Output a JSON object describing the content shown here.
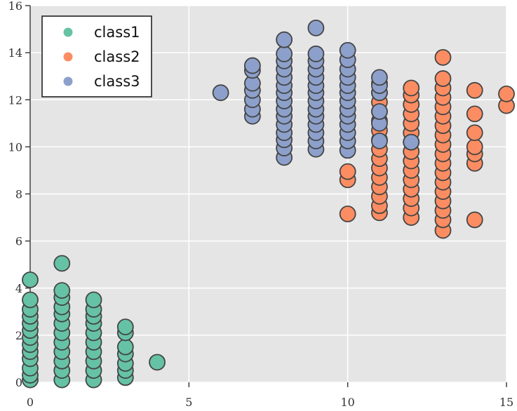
{
  "chart_data": {
    "type": "scatter",
    "title": "",
    "xlabel": "",
    "ylabel": "",
    "xlim": [
      0,
      15
    ],
    "ylim": [
      0,
      16
    ],
    "x_ticks": [
      0,
      5,
      10,
      15
    ],
    "y_ticks": [
      0,
      2,
      4,
      6,
      8,
      10,
      12,
      14,
      16
    ],
    "grid": true,
    "background": "#e5e5e5",
    "grid_color": "#ffffff",
    "marker_edge_color": "#444444",
    "legend": {
      "placement": "top-left"
    },
    "series": [
      {
        "name": "class1",
        "color": "#66c2a5",
        "points": [
          [
            0,
            0.1
          ],
          [
            0,
            0.3
          ],
          [
            0,
            0.6
          ],
          [
            0,
            1.0
          ],
          [
            0,
            1.3
          ],
          [
            0,
            1.6
          ],
          [
            0,
            1.9
          ],
          [
            0,
            2.2
          ],
          [
            0,
            2.5
          ],
          [
            0,
            2.8
          ],
          [
            0,
            3.1
          ],
          [
            0,
            3.5
          ],
          [
            0,
            4.35
          ],
          [
            1,
            0.1
          ],
          [
            1,
            0.5
          ],
          [
            1,
            0.9
          ],
          [
            1,
            1.3
          ],
          [
            1,
            1.7
          ],
          [
            1,
            2.1
          ],
          [
            1,
            2.5
          ],
          [
            1,
            2.9
          ],
          [
            1,
            3.2
          ],
          [
            1,
            3.6
          ],
          [
            1,
            3.9
          ],
          [
            1,
            5.05
          ],
          [
            2,
            0.1
          ],
          [
            2,
            0.5
          ],
          [
            2,
            0.9
          ],
          [
            2,
            1.3
          ],
          [
            2,
            1.7
          ],
          [
            2,
            2.1
          ],
          [
            2,
            2.5
          ],
          [
            2,
            2.8
          ],
          [
            2,
            3.1
          ],
          [
            2,
            3.5
          ],
          [
            3,
            0.2
          ],
          [
            3,
            0.5
          ],
          [
            3,
            0.8
          ],
          [
            3,
            1.2
          ],
          [
            3,
            1.5
          ],
          [
            3,
            2.1
          ],
          [
            3,
            2.35
          ],
          [
            4,
            0.85
          ]
        ]
      },
      {
        "name": "class2",
        "color": "#fc8d62",
        "points": [
          [
            10,
            7.15
          ],
          [
            10,
            8.6
          ],
          [
            10,
            8.95
          ],
          [
            11,
            7.2
          ],
          [
            11,
            7.5
          ],
          [
            11,
            7.9
          ],
          [
            11,
            8.3
          ],
          [
            11,
            8.7
          ],
          [
            11,
            9.1
          ],
          [
            11,
            9.5
          ],
          [
            11,
            9.9
          ],
          [
            11,
            10.3
          ],
          [
            11,
            10.7
          ],
          [
            11,
            11.1
          ],
          [
            11,
            11.5
          ],
          [
            11,
            11.9
          ],
          [
            11,
            12.3
          ],
          [
            11,
            12.7
          ],
          [
            12,
            7.0
          ],
          [
            12,
            7.4
          ],
          [
            12,
            7.8
          ],
          [
            12,
            8.2
          ],
          [
            12,
            8.6
          ],
          [
            12,
            9.0
          ],
          [
            12,
            9.4
          ],
          [
            12,
            9.8
          ],
          [
            12,
            10.2
          ],
          [
            12,
            10.6
          ],
          [
            12,
            11.0
          ],
          [
            12,
            11.4
          ],
          [
            12,
            11.8
          ],
          [
            12,
            12.2
          ],
          [
            12,
            12.5
          ],
          [
            13,
            6.45
          ],
          [
            13,
            6.9
          ],
          [
            13,
            7.3
          ],
          [
            13,
            7.7
          ],
          [
            13,
            8.1
          ],
          [
            13,
            8.5
          ],
          [
            13,
            8.9
          ],
          [
            13,
            9.3
          ],
          [
            13,
            9.7
          ],
          [
            13,
            10.1
          ],
          [
            13,
            10.5
          ],
          [
            13,
            10.9
          ],
          [
            13,
            11.3
          ],
          [
            13,
            11.7
          ],
          [
            13,
            12.1
          ],
          [
            13,
            12.5
          ],
          [
            13,
            12.9
          ],
          [
            13,
            13.8
          ],
          [
            14,
            6.9
          ],
          [
            14,
            9.3
          ],
          [
            14,
            9.7
          ],
          [
            14,
            10.0
          ],
          [
            14,
            10.6
          ],
          [
            14,
            11.4
          ],
          [
            14,
            12.4
          ],
          [
            15,
            11.75
          ],
          [
            15,
            12.25
          ]
        ]
      },
      {
        "name": "class3",
        "color": "#8da0cb",
        "points": [
          [
            6,
            12.3
          ],
          [
            7,
            11.3
          ],
          [
            7,
            11.6
          ],
          [
            7,
            12.0
          ],
          [
            7,
            12.4
          ],
          [
            7,
            12.7
          ],
          [
            7,
            13.25
          ],
          [
            7,
            13.45
          ],
          [
            8,
            9.55
          ],
          [
            8,
            9.95
          ],
          [
            8,
            10.3
          ],
          [
            8,
            10.6
          ],
          [
            8,
            10.95
          ],
          [
            8,
            11.3
          ],
          [
            8,
            11.6
          ],
          [
            8,
            11.95
          ],
          [
            8,
            12.3
          ],
          [
            8,
            12.6
          ],
          [
            8,
            12.95
          ],
          [
            8,
            13.3
          ],
          [
            8,
            13.65
          ],
          [
            8,
            13.95
          ],
          [
            8,
            14.55
          ],
          [
            9,
            9.9
          ],
          [
            9,
            10.25
          ],
          [
            9,
            10.6
          ],
          [
            9,
            10.95
          ],
          [
            9,
            11.3
          ],
          [
            9,
            11.6
          ],
          [
            9,
            11.95
          ],
          [
            9,
            12.3
          ],
          [
            9,
            12.6
          ],
          [
            9,
            12.95
          ],
          [
            9,
            13.3
          ],
          [
            9,
            13.65
          ],
          [
            9,
            13.95
          ],
          [
            9,
            15.05
          ],
          [
            10,
            9.85
          ],
          [
            10,
            10.25
          ],
          [
            10,
            10.6
          ],
          [
            10,
            10.95
          ],
          [
            10,
            11.3
          ],
          [
            10,
            11.6
          ],
          [
            10,
            11.95
          ],
          [
            10,
            12.3
          ],
          [
            10,
            12.6
          ],
          [
            10,
            12.95
          ],
          [
            10,
            13.3
          ],
          [
            10,
            13.7
          ],
          [
            10,
            14.1
          ],
          [
            11,
            10.25
          ],
          [
            11,
            11.0
          ],
          [
            11,
            11.5
          ],
          [
            11,
            12.3
          ],
          [
            11,
            12.6
          ],
          [
            11,
            12.95
          ],
          [
            12,
            10.2
          ]
        ]
      }
    ]
  }
}
